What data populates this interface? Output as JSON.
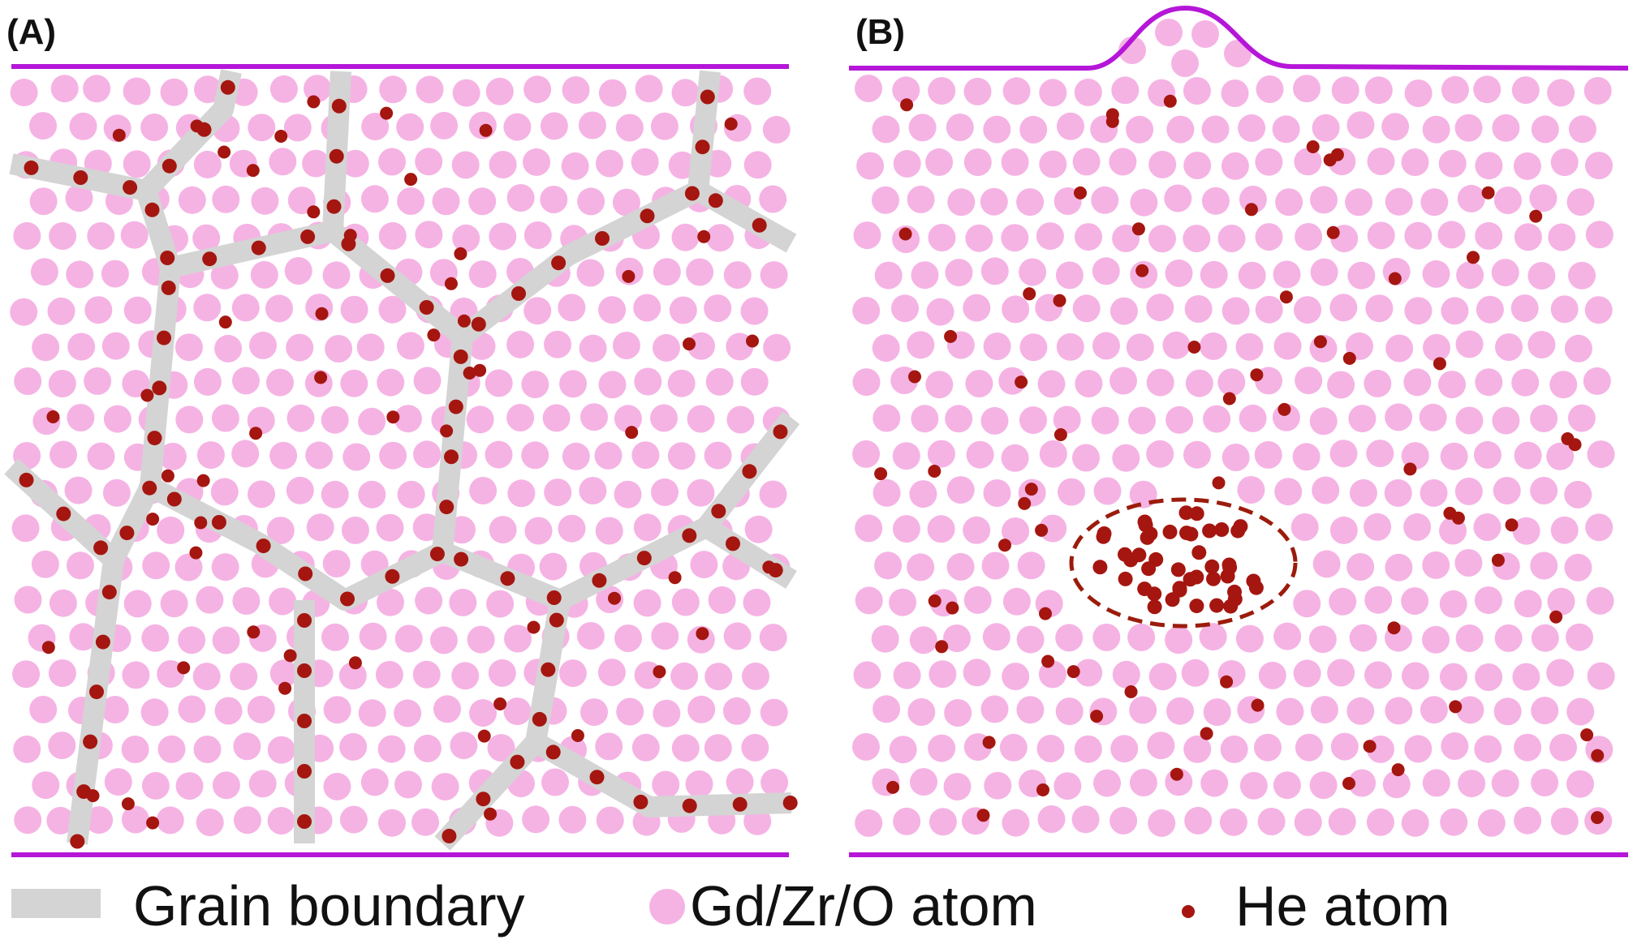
{
  "panels": [
    {
      "label": "(A)"
    },
    {
      "label": "(B)"
    }
  ],
  "legend": {
    "grain_boundary": "Grain boundary",
    "matrix_atom": "Gd/Zr/O atom",
    "he_atom": "He atom"
  },
  "colors": {
    "matrix_atom": "#f5b3e4",
    "he_atom": "#a51610",
    "grain_boundary": "#d4d4d4",
    "surface_line": "#b516d8",
    "bubble_outline": "#9b1c0c"
  }
}
